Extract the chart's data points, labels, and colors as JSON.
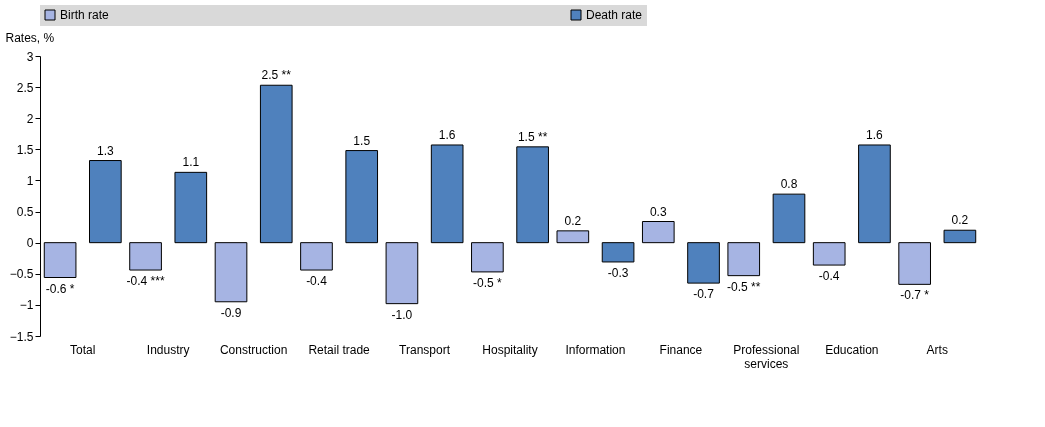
{
  "chart_data": {
    "type": "bar",
    "ylabel": "Rates, %",
    "categories": [
      "Total",
      "Industry",
      "Construction",
      "Retail trade",
      "Transport",
      "Hospitality",
      "Information",
      "Finance",
      "Professional services",
      "Education",
      "Arts"
    ],
    "series": [
      {
        "name": "Birth rate",
        "color": "#a6b4e3",
        "values": [
          -0.56,
          -0.44,
          -0.95,
          -0.44,
          -0.98,
          -0.47,
          0.19,
          0.34,
          -0.53,
          -0.36,
          -0.67
        ],
        "value_labels": [
          "-0.6 *",
          "-0.4 ***",
          "-0.9",
          "-0.4",
          "-1.0",
          "-0.5 *",
          "0.2",
          "0.3",
          "-0.5 **",
          "-0.4",
          "-0.7 *"
        ]
      },
      {
        "name": "Death rate",
        "color": "#4f81bd",
        "values": [
          1.32,
          1.13,
          2.53,
          1.48,
          1.57,
          1.54,
          -0.31,
          -0.65,
          0.78,
          1.57,
          0.2
        ],
        "value_labels": [
          "1.3",
          "1.1",
          "2.5 **",
          "1.5",
          "1.6",
          "1.5 **",
          "-0.3",
          "-0.7",
          "0.8",
          "1.6",
          "0.2"
        ]
      }
    ],
    "ylim": [
      -1.5,
      3
    ],
    "yticks": [
      -1.5,
      -1,
      -0.5,
      0,
      0.5,
      1,
      1.5,
      2,
      2.5,
      3
    ],
    "grid": false,
    "legend": "top"
  }
}
